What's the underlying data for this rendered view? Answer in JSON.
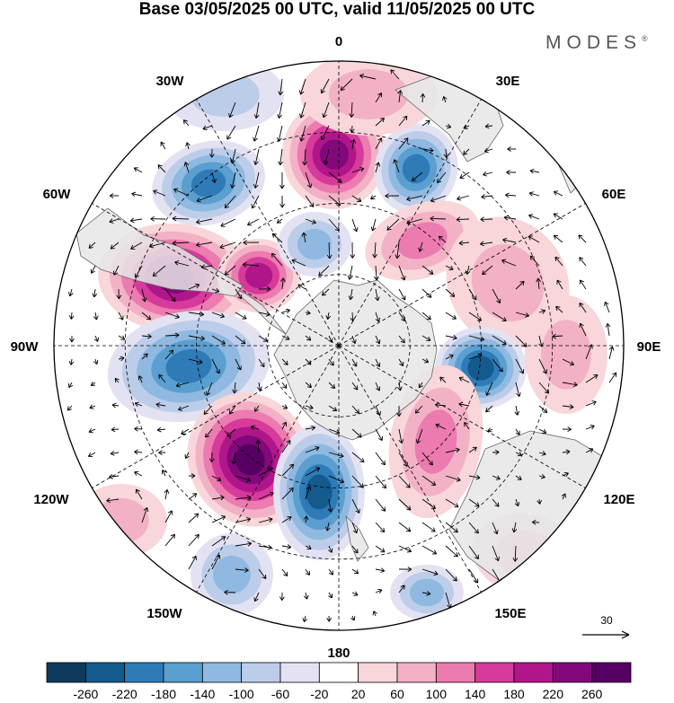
{
  "title": "Base 03/05/2025 00 UTC, valid 11/05/2025 00 UTC",
  "brand": "MODES",
  "brand_mark": "®",
  "map": {
    "projection": "south-polar-stereographic",
    "longitude_labels": {
      "lon_0": "0",
      "lon_30e": "30E",
      "lon_60e": "60E",
      "lon_90e": "90E",
      "lon_120e": "120E",
      "lon_150e": "150E",
      "lon_180": "180",
      "lon_150w": "150W",
      "lon_120w": "120W",
      "lon_90w": "90W",
      "lon_60w": "60W",
      "lon_30w": "30W"
    },
    "reference_vector_label": "30",
    "field_colors": {
      "land": "#e6e6e6",
      "neg_anomaly": "#3f84bd",
      "pos_anomaly": "#d9359a"
    }
  },
  "colorbar": {
    "colors": [
      "#0f3a5e",
      "#145a8c",
      "#2f7bb8",
      "#5a9fd0",
      "#8fb9e0",
      "#bccde9",
      "#e3e2f2",
      "#ffffff",
      "#f8d6da",
      "#f3b1c6",
      "#ec7bb0",
      "#d63a9a",
      "#b0168a",
      "#82087b",
      "#560064"
    ],
    "tick_labels": [
      "-260",
      "-220",
      "-180",
      "-140",
      "-100",
      "-60",
      "-20",
      "20",
      "60",
      "100",
      "140",
      "180",
      "220",
      "260"
    ]
  }
}
